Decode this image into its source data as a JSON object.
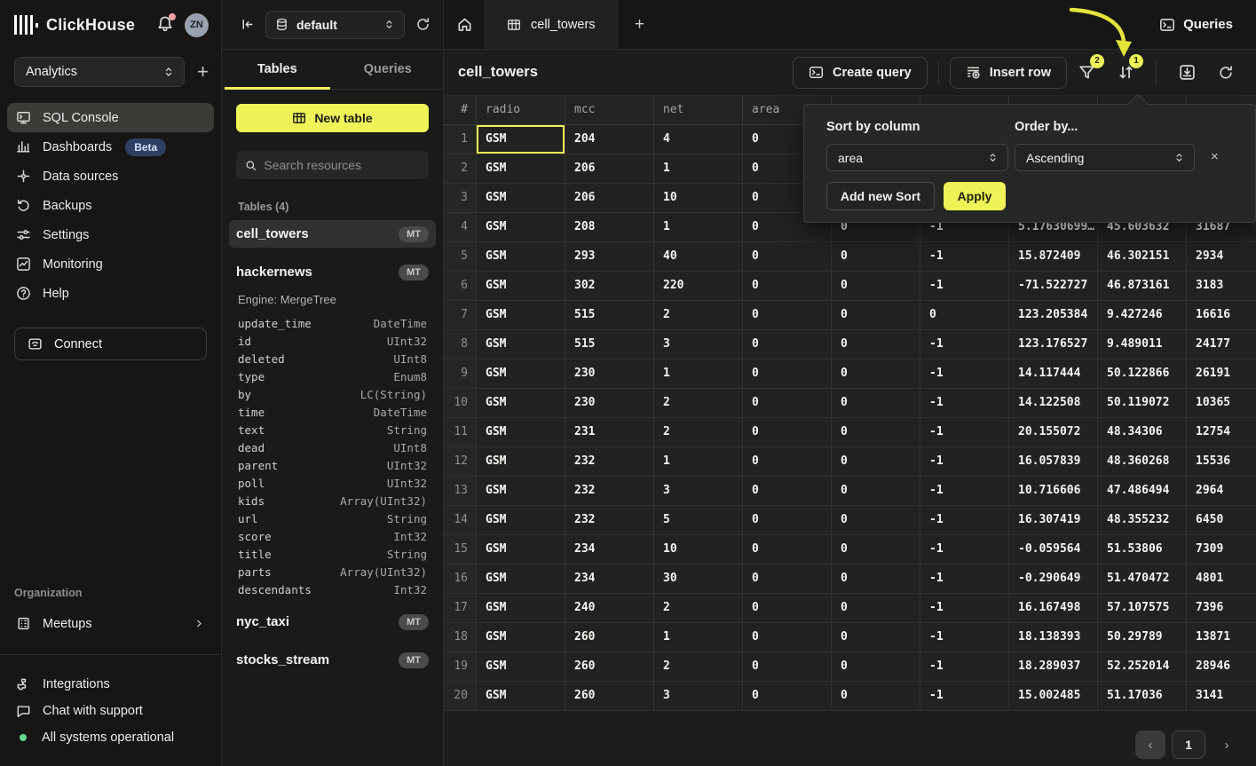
{
  "colors": {
    "accent": "#eef457",
    "beta_badge_bg": "#2e3f63",
    "status_green": "#67d98f",
    "notification_red": "#f4a2a2",
    "selected_cell_border": "#eef457"
  },
  "sidebar": {
    "app_name": "ClickHouse",
    "avatar_initials": "ZN",
    "workspace": "Analytics",
    "nav_items": [
      {
        "label": "SQL Console",
        "icon": "console-icon",
        "active": true
      },
      {
        "label": "Dashboards",
        "icon": "bar-chart-icon",
        "badge": "Beta"
      },
      {
        "label": "Data sources",
        "icon": "data-sources-icon"
      },
      {
        "label": "Backups",
        "icon": "history-icon"
      },
      {
        "label": "Settings",
        "icon": "sliders-icon"
      },
      {
        "label": "Monitoring",
        "icon": "monitoring-icon"
      },
      {
        "label": "Help",
        "icon": "help-icon"
      }
    ],
    "connect_label": "Connect",
    "org_label": "Organization",
    "meetups_label": "Meetups",
    "footer_items": [
      {
        "label": "Integrations",
        "icon": "integrations-icon"
      },
      {
        "label": "Chat with support",
        "icon": "chat-icon"
      },
      {
        "label": "All systems operational",
        "icon": "status-dot"
      }
    ]
  },
  "explorer": {
    "database": "default",
    "tabs": [
      {
        "label": "Tables",
        "active": true
      },
      {
        "label": "Queries",
        "active": false
      }
    ],
    "new_table_label": "New table",
    "search_placeholder": "Search resources",
    "section_label": "Tables (4)",
    "tables": [
      {
        "name": "cell_towers",
        "badge": "MT",
        "active": true
      },
      {
        "name": "hackernews",
        "badge": "MT",
        "engine": "Engine: MergeTree",
        "columns": [
          [
            "update_time",
            "DateTime"
          ],
          [
            "id",
            "UInt32"
          ],
          [
            "deleted",
            "UInt8"
          ],
          [
            "type",
            "Enum8"
          ],
          [
            "by",
            "LC(String)"
          ],
          [
            "time",
            "DateTime"
          ],
          [
            "text",
            "String"
          ],
          [
            "dead",
            "UInt8"
          ],
          [
            "parent",
            "UInt32"
          ],
          [
            "poll",
            "UInt32"
          ],
          [
            "kids",
            "Array(UInt32)"
          ],
          [
            "url",
            "String"
          ],
          [
            "score",
            "Int32"
          ],
          [
            "title",
            "String"
          ],
          [
            "parts",
            "Array(UInt32)"
          ],
          [
            "descendants",
            "Int32"
          ]
        ]
      },
      {
        "name": "nyc_taxi",
        "badge": "MT"
      },
      {
        "name": "stocks_stream",
        "badge": "MT"
      }
    ]
  },
  "main": {
    "tab_title": "cell_towers",
    "queries_label": "Queries",
    "page_title": "cell_towers",
    "create_query_label": "Create query",
    "insert_row_label": "Insert row",
    "filter_badge": "2",
    "sort_badge": "1"
  },
  "sort_popup": {
    "column_label": "Sort by column",
    "column_value": "area",
    "order_label": "Order by...",
    "order_value": "Ascending",
    "add_button": "Add new Sort",
    "apply_button": "Apply",
    "close": "×"
  },
  "table": {
    "headers": [
      "#",
      "radio",
      "mcc",
      "net",
      "area",
      "",
      "",
      "",
      "",
      ""
    ],
    "rows": [
      [
        "1",
        "GSM",
        "204",
        "4",
        "0",
        "",
        "",
        "",
        "",
        ""
      ],
      [
        "2",
        "GSM",
        "206",
        "1",
        "0",
        "",
        "",
        "",
        "",
        ""
      ],
      [
        "3",
        "GSM",
        "206",
        "10",
        "0",
        "",
        "",
        "",
        "",
        ""
      ],
      [
        "4",
        "GSM",
        "208",
        "1",
        "0",
        "0",
        "-1",
        "5.17630699…",
        "45.603632",
        "31687"
      ],
      [
        "5",
        "GSM",
        "293",
        "40",
        "0",
        "0",
        "-1",
        "15.872409",
        "46.302151",
        "2934"
      ],
      [
        "6",
        "GSM",
        "302",
        "220",
        "0",
        "0",
        "-1",
        "-71.522727",
        "46.873161",
        "3183"
      ],
      [
        "7",
        "GSM",
        "515",
        "2",
        "0",
        "0",
        "0",
        "123.205384",
        "9.427246",
        "16616"
      ],
      [
        "8",
        "GSM",
        "515",
        "3",
        "0",
        "0",
        "-1",
        "123.176527",
        "9.489011",
        "24177"
      ],
      [
        "9",
        "GSM",
        "230",
        "1",
        "0",
        "0",
        "-1",
        "14.117444",
        "50.122866",
        "26191"
      ],
      [
        "10",
        "GSM",
        "230",
        "2",
        "0",
        "0",
        "-1",
        "14.122508",
        "50.119072",
        "10365"
      ],
      [
        "11",
        "GSM",
        "231",
        "2",
        "0",
        "0",
        "-1",
        "20.155072",
        "48.34306",
        "12754"
      ],
      [
        "12",
        "GSM",
        "232",
        "1",
        "0",
        "0",
        "-1",
        "16.057839",
        "48.360268",
        "15536"
      ],
      [
        "13",
        "GSM",
        "232",
        "3",
        "0",
        "0",
        "-1",
        "10.716606",
        "47.486494",
        "2964"
      ],
      [
        "14",
        "GSM",
        "232",
        "5",
        "0",
        "0",
        "-1",
        "16.307419",
        "48.355232",
        "6450"
      ],
      [
        "15",
        "GSM",
        "234",
        "10",
        "0",
        "0",
        "-1",
        "-0.059564",
        "51.53806",
        "7309"
      ],
      [
        "16",
        "GSM",
        "234",
        "30",
        "0",
        "0",
        "-1",
        "-0.290649",
        "51.470472",
        "4801"
      ],
      [
        "17",
        "GSM",
        "240",
        "2",
        "0",
        "0",
        "-1",
        "16.167498",
        "57.107575",
        "7396"
      ],
      [
        "18",
        "GSM",
        "260",
        "1",
        "0",
        "0",
        "-1",
        "18.138393",
        "50.29789",
        "13871"
      ],
      [
        "19",
        "GSM",
        "260",
        "2",
        "0",
        "0",
        "-1",
        "18.289037",
        "52.252014",
        "28946"
      ],
      [
        "20",
        "GSM",
        "260",
        "3",
        "0",
        "0",
        "-1",
        "15.002485",
        "51.17036",
        "3141"
      ]
    ],
    "selected_cell": {
      "row": 0,
      "col": 1
    }
  },
  "pagination": {
    "prev": "‹",
    "page": "1",
    "next": "›"
  }
}
